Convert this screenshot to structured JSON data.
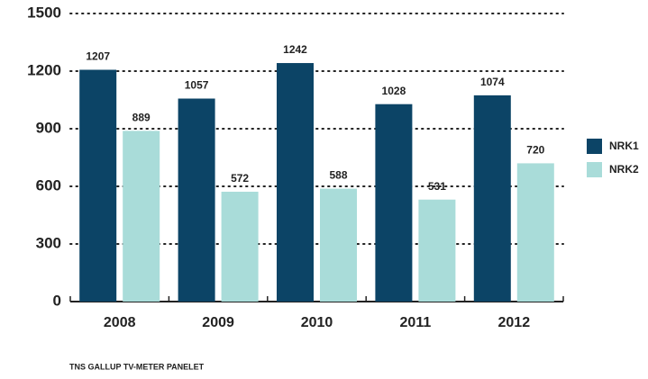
{
  "chart_data": {
    "type": "bar",
    "categories": [
      "2008",
      "2009",
      "2010",
      "2011",
      "2012"
    ],
    "series": [
      {
        "name": "NRK1",
        "color": "#0c4466",
        "values": [
          1207,
          1057,
          1242,
          1028,
          1074
        ]
      },
      {
        "name": "NRK2",
        "color": "#a9dcd9",
        "values": [
          889,
          572,
          588,
          531,
          720
        ]
      }
    ],
    "ylim": [
      0,
      1500
    ],
    "yticks": [
      0,
      300,
      600,
      900,
      1200,
      1500
    ],
    "grid": true,
    "legend": "right",
    "source": "TNS GALLUP TV-METER PANELET"
  }
}
